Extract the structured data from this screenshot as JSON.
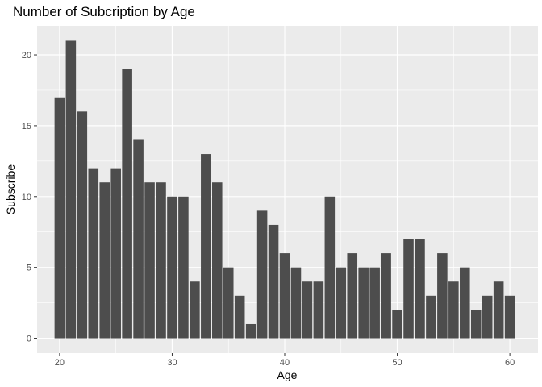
{
  "chart_data": {
    "type": "bar",
    "title": "Number of Subcription by Age",
    "xlabel": "Age",
    "ylabel": "Subscribe",
    "x": [
      20,
      21,
      22,
      23,
      24,
      25,
      26,
      27,
      28,
      29,
      30,
      31,
      32,
      33,
      34,
      35,
      36,
      37,
      38,
      39,
      40,
      41,
      42,
      43,
      44,
      45,
      46,
      47,
      48,
      49,
      50,
      51,
      52,
      53,
      54,
      55,
      56,
      57,
      58,
      59,
      60
    ],
    "values": [
      17,
      21,
      16,
      12,
      11,
      12,
      19,
      14,
      11,
      11,
      10,
      10,
      4,
      13,
      11,
      5,
      3,
      1,
      9,
      8,
      6,
      5,
      4,
      4,
      10,
      5,
      6,
      5,
      5,
      6,
      2,
      7,
      7,
      3,
      6,
      4,
      5,
      2,
      3,
      4,
      3
    ],
    "xlim": [
      18.0,
      62.5
    ],
    "ylim": [
      -1.05,
      22.05
    ],
    "x_ticks": [
      20,
      30,
      40,
      50,
      60
    ],
    "y_ticks": [
      0,
      5,
      10,
      15,
      20
    ],
    "grid": true,
    "legend": "none",
    "colors": {
      "bar": "#4d4d4d",
      "panel": "#ebebeb",
      "grid": "#ffffff"
    }
  }
}
